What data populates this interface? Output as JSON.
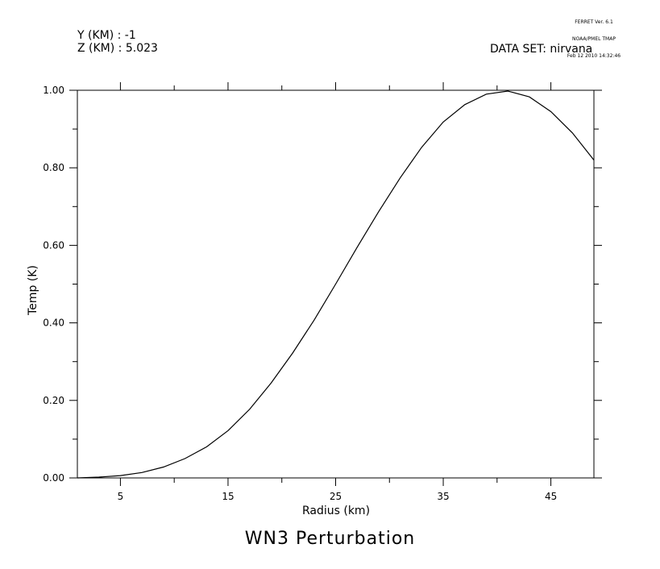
{
  "header": {
    "y_label": "Y (KM) : -1",
    "z_label": "Z (KM) : 5.023",
    "dataset": "DATA SET: nirvana",
    "ferret_line1": "FERRET Ver. 6.1",
    "ferret_line2": "NOAA/PMEL TMAP",
    "ferret_line3": "Feb 12 2010 14:32:46"
  },
  "chart_data": {
    "type": "line",
    "title": "WN3 Perturbation",
    "xlabel": "Radius (km)",
    "ylabel": "Temp (K)",
    "xlim": [
      1,
      49
    ],
    "ylim": [
      0,
      1
    ],
    "xticks_labeled": [
      "5",
      "15",
      "25",
      "35",
      "45"
    ],
    "yticks_labeled": [
      "0.00",
      "0.20",
      "0.40",
      "0.60",
      "0.80",
      "1.00"
    ],
    "grid": false,
    "series": [
      {
        "x": [
          1,
          3,
          5,
          7,
          9,
          11,
          13,
          15,
          17,
          19,
          21,
          23,
          25,
          27,
          29,
          31,
          33,
          35,
          37,
          39,
          41,
          43,
          45,
          47,
          49
        ],
        "values": [
          0.0,
          0.002,
          0.006,
          0.014,
          0.028,
          0.05,
          0.08,
          0.122,
          0.177,
          0.245,
          0.322,
          0.407,
          0.5,
          0.595,
          0.687,
          0.774,
          0.853,
          0.918,
          0.963,
          0.99,
          0.998,
          0.983,
          0.945,
          0.89,
          0.82
        ]
      }
    ]
  }
}
